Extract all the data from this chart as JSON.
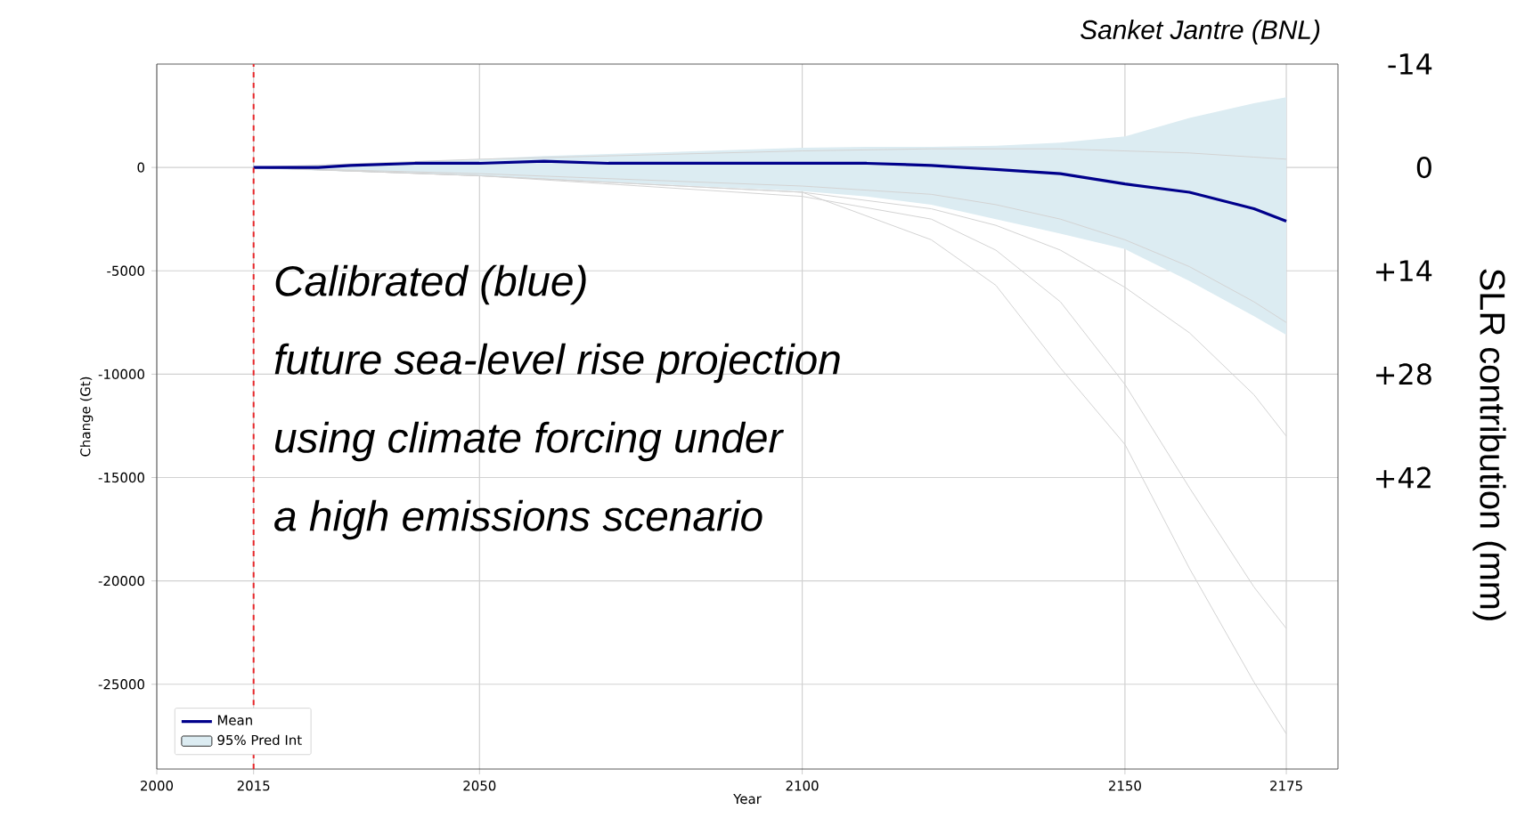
{
  "chart_data": {
    "type": "line",
    "xlabel": "Year",
    "ylabel": "Change (Gt)",
    "y2label": "SLR contribution (mm)",
    "annotations": [
      "Sanket Jantre (BNL)",
      "Calibrated (blue)",
      "future sea-level rise projection",
      "using climate forcing under",
      "a high emissions scenario"
    ],
    "xlim": [
      2000,
      2183
    ],
    "ylim": [
      -29100,
      5000
    ],
    "xticks": [
      2000,
      2015,
      2050,
      2100,
      2150,
      2175
    ],
    "yticks": [
      -25000,
      -20000,
      -15000,
      -10000,
      -5000,
      0
    ],
    "y2lim": [
      81.5,
      -14
    ],
    "y2ticks": [
      -14,
      0,
      {
        "value": 14,
        "label": "+14"
      },
      {
        "value": 28,
        "label": "+28"
      },
      {
        "value": 42,
        "label": "+42"
      }
    ],
    "grid": true,
    "legend": "bottom left",
    "ref_lines": [
      {
        "axis": "x",
        "value": 2015,
        "color": "#e8262a",
        "line_style": "dashed"
      }
    ],
    "series": [
      {
        "type": "area",
        "name": "95% Pred Int",
        "color": "#dcecf2",
        "x": [
          2015,
          2020,
          2025,
          2030,
          2040,
          2050,
          2060,
          2070,
          2080,
          2090,
          2100,
          2110,
          2120,
          2130,
          2140,
          2150,
          2160,
          2170,
          2175
        ],
        "values": [
          null,
          null,
          null,
          null,
          null,
          null,
          null,
          null,
          null,
          null,
          null,
          null,
          null,
          null,
          null,
          null,
          null,
          null,
          null
        ],
        "lower": [
          0,
          -100,
          -150,
          -200,
          -300,
          -400,
          -550,
          -700,
          -850,
          -1000,
          -1150,
          -1400,
          -1800,
          -2500,
          -3200,
          -3950,
          -5500,
          -7200,
          -8100
        ],
        "upper": [
          0,
          50,
          100,
          180,
          300,
          400,
          550,
          650,
          750,
          850,
          950,
          1000,
          1000,
          1050,
          1200,
          1500,
          2400,
          3100,
          3400
        ]
      },
      {
        "color": "#d3d3d3",
        "x": [
          2015,
          2050,
          2100,
          2120,
          2130,
          2140,
          2150,
          2160,
          2170,
          2175
        ],
        "values": [
          0,
          400,
          800,
          900,
          900,
          900,
          800,
          700,
          500,
          400
        ]
      },
      {
        "color": "#d3d3d3",
        "x": [
          2015,
          2050,
          2100,
          2120,
          2130,
          2140,
          2150,
          2160,
          2170,
          2175
        ],
        "values": [
          0,
          -300,
          -900,
          -1300,
          -1800,
          -2500,
          -3500,
          -4800,
          -6500,
          -7500
        ]
      },
      {
        "color": "#d3d3d3",
        "x": [
          2015,
          2050,
          2100,
          2120,
          2130,
          2140,
          2150,
          2160,
          2170,
          2175
        ],
        "values": [
          0,
          -400,
          -1200,
          -2000,
          -2800,
          -4000,
          -5800,
          -8000,
          -11000,
          -13000
        ]
      },
      {
        "color": "#d3d3d3",
        "x": [
          2015,
          2050,
          2100,
          2120,
          2130,
          2140,
          2150,
          2160,
          2170,
          2175
        ],
        "values": [
          0,
          -400,
          -1400,
          -2500,
          -4000,
          -6500,
          -10500,
          -15500,
          -20300,
          -22300
        ]
      },
      {
        "color": "#d3d3d3",
        "x": [
          2015,
          2050,
          2100,
          2120,
          2130,
          2140,
          2150,
          2160,
          2170,
          2175
        ],
        "values": [
          0,
          -400,
          -1200,
          -3500,
          -5700,
          -9700,
          -13400,
          -19400,
          -24900,
          -27400
        ]
      },
      {
        "name": "Mean",
        "color": "#00008b",
        "x": [
          2015,
          2020,
          2025,
          2030,
          2040,
          2050,
          2060,
          2070,
          2080,
          2090,
          2100,
          2110,
          2120,
          2130,
          2140,
          2150,
          2160,
          2170,
          2175
        ],
        "values": [
          0,
          0,
          0,
          100,
          200,
          200,
          300,
          200,
          200,
          200,
          200,
          200,
          100,
          -100,
          -300,
          -800,
          -1200,
          -2000,
          -2600
        ]
      }
    ]
  }
}
